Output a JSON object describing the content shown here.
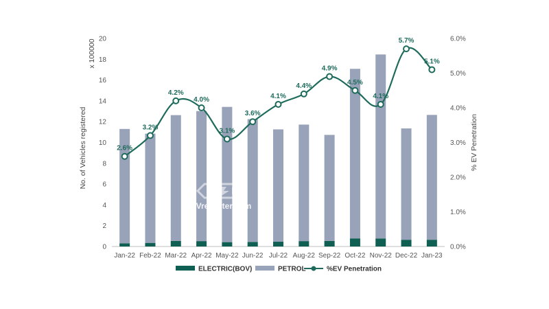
{
  "colors": {
    "electric": "#0f5f52",
    "petrol": "#98a2b8",
    "penetration": "#1e6b5c",
    "grid": "#e3e3e3",
    "axis": "#bfbfbf"
  },
  "watermark": {
    "text": "EVreporter.com",
    "icon": "ev-battery-icon"
  },
  "chart_data": {
    "type": "bar",
    "stacked": true,
    "categories": [
      "Jan-22",
      "Feb-22",
      "Mar-22",
      "Apr-22",
      "May-22",
      "Jun-22",
      "Jul-22",
      "Aug-22",
      "Sep-22",
      "Oct-22",
      "Nov-22",
      "Dec-22",
      "Jan-23"
    ],
    "series": [
      {
        "name": "ELECTRIC(BOV)",
        "type": "bar",
        "axis": "left",
        "values": [
          0.3,
          0.35,
          0.53,
          0.52,
          0.42,
          0.44,
          0.46,
          0.52,
          0.53,
          0.78,
          0.76,
          0.65,
          0.65
        ]
      },
      {
        "name": "PETROL",
        "type": "bar",
        "axis": "left",
        "values": [
          11.0,
          10.5,
          12.1,
          12.5,
          13.0,
          11.8,
          10.8,
          11.2,
          10.2,
          16.3,
          17.7,
          10.7,
          12.0
        ]
      },
      {
        "name": "%EV Penetration",
        "type": "line",
        "axis": "right",
        "values": [
          2.6,
          3.2,
          4.2,
          4.0,
          3.1,
          3.6,
          4.1,
          4.4,
          4.9,
          4.5,
          4.1,
          5.7,
          5.1
        ]
      }
    ],
    "data_labels": [
      "2.6%",
      "3.2%",
      "4.2%",
      "4.0%",
      "3.1%",
      "3.6%",
      "4.1%",
      "4.4%",
      "4.9%",
      "4.5%",
      "4.1%",
      "5.7%",
      "5.1%"
    ],
    "y_left": {
      "label": "No. of Vehicles registered",
      "unit_note": "x 100000",
      "ylim": [
        0,
        20
      ],
      "ticks": [
        "0",
        "2",
        "4",
        "6",
        "8",
        "10",
        "12",
        "14",
        "16",
        "18",
        "20"
      ]
    },
    "y_right": {
      "label": "% EV Penetration",
      "ylim": [
        0,
        6
      ],
      "ticks": [
        "0.0%",
        "1.0%",
        "2.0%",
        "3.0%",
        "4.0%",
        "5.0%",
        "6.0%"
      ]
    },
    "grid": false,
    "legend": "bottom"
  }
}
